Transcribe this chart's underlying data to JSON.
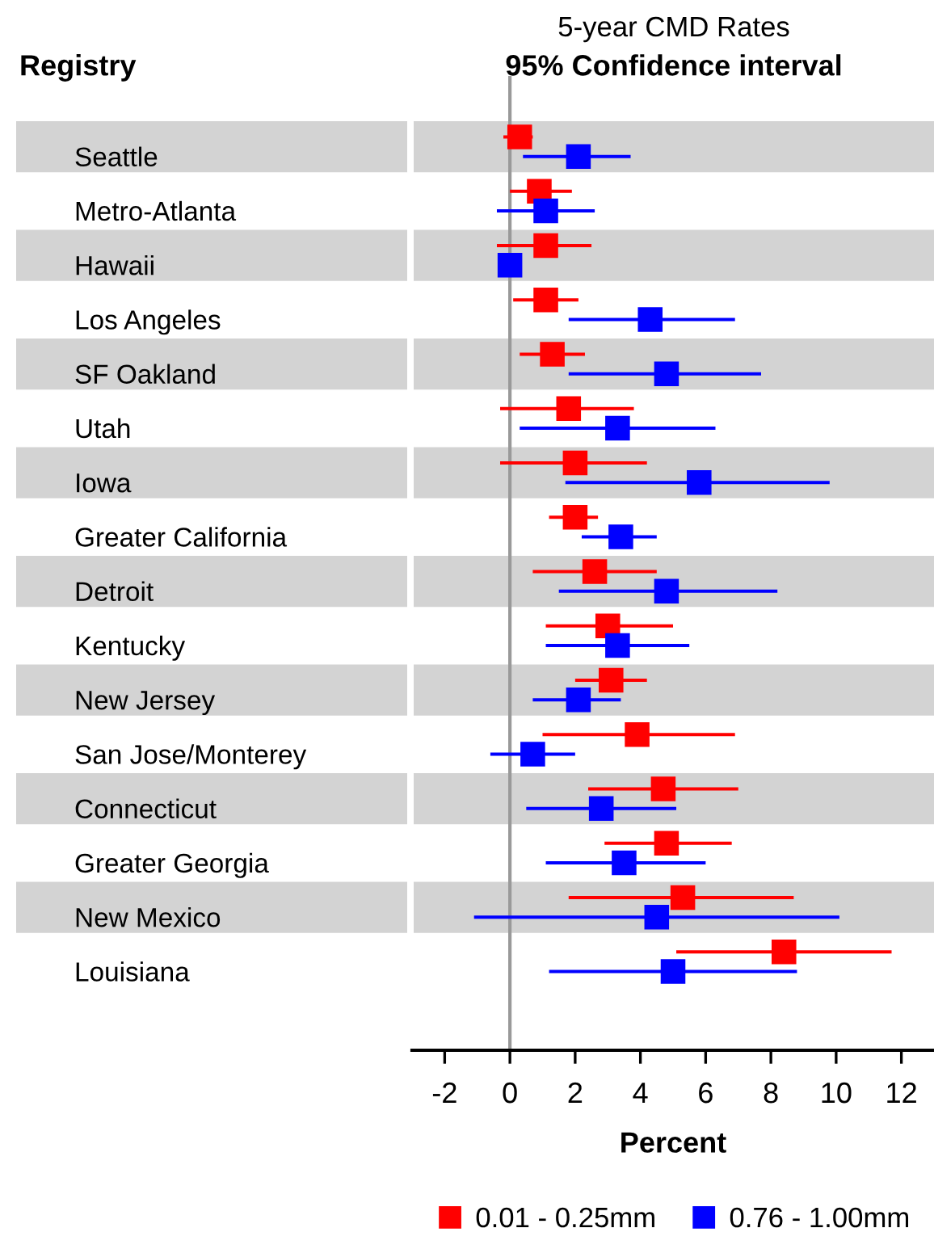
{
  "chart_data": {
    "type": "scatter",
    "orientation": "horizontal",
    "title": "5-year CMD Rates",
    "subtitle": "95% Confidence interval",
    "annotations": [
      "Registry"
    ],
    "xlabel": "Percent",
    "categories": [
      "Seattle",
      "Metro-Atlanta",
      "Hawaii",
      "Los Angeles",
      "SF Oakland",
      "Utah",
      "Iowa",
      "Greater California",
      "Detroit",
      "Kentucky",
      "New Jersey",
      "San Jose/Monterey",
      "Connecticut",
      "Greater Georgia",
      "New Mexico",
      "Louisiana"
    ],
    "series": [
      {
        "name": "0.01 - 0.25mm",
        "color": "#ff0000",
        "values": [
          0.3,
          0.9,
          1.1,
          1.1,
          1.3,
          1.8,
          2.0,
          2.0,
          2.6,
          3.0,
          3.1,
          3.9,
          4.7,
          4.8,
          5.3,
          8.4
        ],
        "errors": [
          [
            -0.2,
            0.7
          ],
          [
            0.0,
            1.9
          ],
          [
            -0.4,
            2.5
          ],
          [
            0.1,
            2.1
          ],
          [
            0.3,
            2.3
          ],
          [
            -0.3,
            3.8
          ],
          [
            -0.3,
            4.2
          ],
          [
            1.2,
            2.7
          ],
          [
            0.7,
            4.5
          ],
          [
            1.1,
            5.0
          ],
          [
            2.0,
            4.2
          ],
          [
            1.0,
            6.9
          ],
          [
            2.4,
            7.0
          ],
          [
            2.9,
            6.8
          ],
          [
            1.8,
            8.7
          ],
          [
            5.1,
            11.7
          ]
        ]
      },
      {
        "name": "0.76 - 1.00mm",
        "color": "#0000ff",
        "values": [
          2.1,
          1.1,
          0.0,
          4.3,
          4.8,
          3.3,
          5.8,
          3.4,
          4.8,
          3.3,
          2.1,
          0.7,
          2.8,
          3.5,
          4.5,
          5.0
        ],
        "errors": [
          [
            0.4,
            3.7
          ],
          [
            -0.4,
            2.6
          ],
          null,
          [
            1.8,
            6.9
          ],
          [
            1.8,
            7.7
          ],
          [
            0.3,
            6.3
          ],
          [
            1.7,
            9.8
          ],
          [
            2.2,
            4.5
          ],
          [
            1.5,
            8.2
          ],
          [
            1.1,
            5.5
          ],
          [
            0.7,
            3.4
          ],
          [
            -0.6,
            2.0
          ],
          [
            0.5,
            5.1
          ],
          [
            1.1,
            6.0
          ],
          [
            -1.1,
            10.1
          ],
          [
            1.2,
            8.8
          ]
        ]
      }
    ],
    "xlim": [
      -3,
      13
    ],
    "xticks": [
      -2,
      0,
      2,
      4,
      6,
      8,
      10,
      12
    ],
    "ref_lines": [
      {
        "axis": "x",
        "value": 0,
        "color": "#999999"
      }
    ],
    "marker": "square",
    "grid": false,
    "legend": "bottom"
  }
}
